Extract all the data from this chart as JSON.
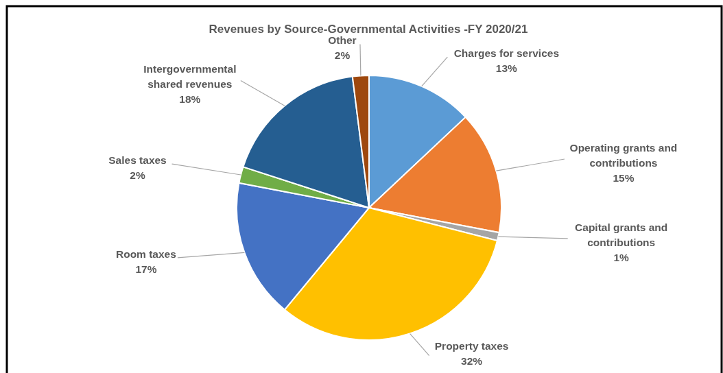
{
  "chart_data": {
    "type": "pie",
    "title": "Revenues by Source-Governmental Activities -FY 2020/21",
    "categories": [
      "Charges for services",
      "Operating grants and contributions",
      "Capital grants and contributions",
      "Property taxes",
      "Room taxes",
      "Sales taxes",
      "Intergovernmental shared revenues",
      "Other"
    ],
    "values": [
      13,
      15,
      1,
      32,
      17,
      2,
      18,
      2
    ],
    "colors": [
      "#5b9bd5",
      "#ed7d31",
      "#a5a5a5",
      "#ffc000",
      "#4472c4",
      "#70ad47",
      "#255e91",
      "#9e480e"
    ],
    "value_labels": [
      "13%",
      "15%",
      "1%",
      "32%",
      "17%",
      "2%",
      "18%",
      "2%"
    ],
    "legend": false
  }
}
